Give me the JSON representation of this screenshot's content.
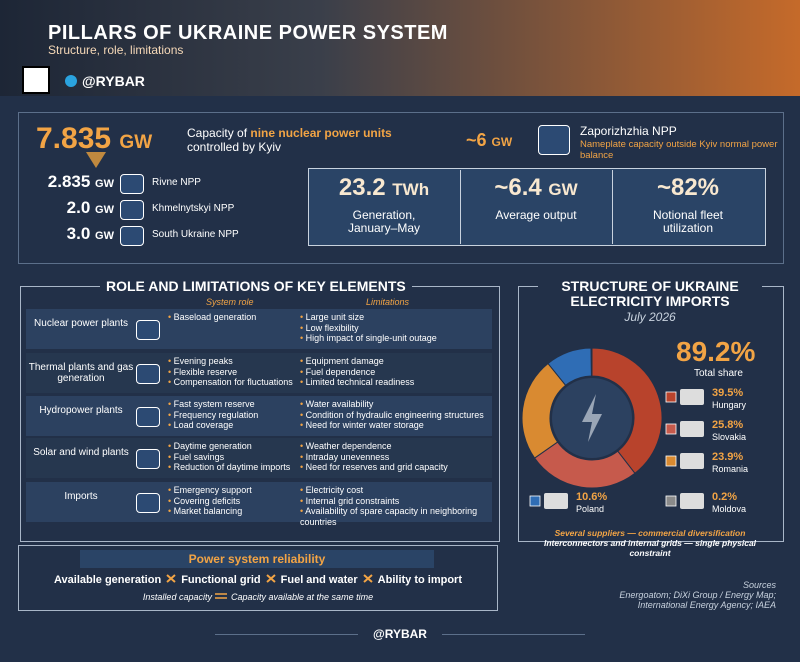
{
  "header": {
    "title": "PILLARS OF UKRAINE POWER SYSTEM",
    "subtitle": "Structure, role, limitations",
    "brand": "@RYBAR"
  },
  "nuclear": {
    "total": "7.835",
    "unit": "GW",
    "caption_pre": "Capacity of ",
    "caption_em": "nine nuclear power units",
    "caption_post": " controlled by Kyiv",
    "plants": [
      {
        "value": "2.835",
        "unit": "GW",
        "name": "Rivne NPP"
      },
      {
        "value": "2.0",
        "unit": "GW",
        "name": "Khmelnytskyi NPP"
      },
      {
        "value": "3.0",
        "unit": "GW",
        "name": "South Ukraine NPP"
      }
    ],
    "zaporizhzhia": {
      "value": "~6",
      "unit": "GW",
      "name": "Zaporizhzhia NPP",
      "note": "Nameplate capacity outside Kyiv normal power balance"
    }
  },
  "stats": [
    {
      "value": "23.2",
      "unit": "TWh",
      "label": "Generation, January–May"
    },
    {
      "value": "~6.4",
      "unit": "GW",
      "label": "Average output"
    },
    {
      "value": "~82%",
      "label": "Notional fleet utilization"
    }
  ],
  "roles": {
    "title": "ROLE AND LIMITATIONS OF KEY ELEMENTS",
    "col_role": "System role",
    "col_limits": "Limitations",
    "rows": [
      {
        "name": "Nuclear power plants",
        "role": [
          "Baseload generation"
        ],
        "limits": [
          "Large unit size",
          "Low flexibility",
          "High impact of single-unit outage"
        ]
      },
      {
        "name": "Thermal plants and gas generation",
        "role": [
          "Evening peaks",
          "Flexible reserve",
          "Compensation for fluctuations"
        ],
        "limits": [
          "Equipment damage",
          "Fuel dependence",
          "Limited technical readiness"
        ]
      },
      {
        "name": "Hydropower plants",
        "role": [
          "Fast system reserve",
          "Frequency regulation",
          "Load coverage"
        ],
        "limits": [
          "Water availability",
          "Condition of hydraulic engineering structures",
          "Need for winter water storage"
        ]
      },
      {
        "name": "Solar and wind plants",
        "role": [
          "Daytime generation",
          "Fuel savings",
          "Reduction of daytime imports"
        ],
        "limits": [
          "Weather dependence",
          "Intraday unevenness",
          "Need for reserves and grid capacity"
        ]
      },
      {
        "name": "Imports",
        "role": [
          "Emergency support",
          "Covering deficits",
          "Market balancing"
        ],
        "limits": [
          "Electricity cost",
          "Internal grid constraints",
          "Availability of spare capacity in neighboring countries"
        ]
      }
    ]
  },
  "reliability": {
    "title": "Power system reliability",
    "items": [
      "Available generation",
      "Functional grid",
      "Fuel and water",
      "Ability to import"
    ],
    "note_left": "Installed capacity",
    "note_right": "Capacity available at the same time"
  },
  "chart_data": {
    "type": "pie",
    "title": "STRUCTURE OF UKRAINE ELECTRICITY IMPORTS",
    "subtitle": "July 2026",
    "categories": [
      "Hungary",
      "Slovakia",
      "Romania",
      "Poland",
      "Moldova"
    ],
    "values": [
      39.5,
      25.8,
      23.9,
      10.6,
      0.2
    ],
    "value_labels": [
      "39.5%",
      "25.8%",
      "23.9%",
      "10.6%",
      "0.2%"
    ],
    "colors": [
      "#b8432c",
      "#c65a4c",
      "#d98a31",
      "#2f6db5",
      "#8a8a8a"
    ],
    "total": {
      "value": "89.2%",
      "label": "Total share"
    },
    "notes": [
      "Several suppliers — commercial diversification",
      "Interconnectors and internal grids — single physical constraint"
    ]
  },
  "sources": {
    "title": "Sources",
    "text": "Energoatom; DiXi Group / Energy Map; International Energy Agency; IAEA"
  },
  "footer": "@RYBAR"
}
